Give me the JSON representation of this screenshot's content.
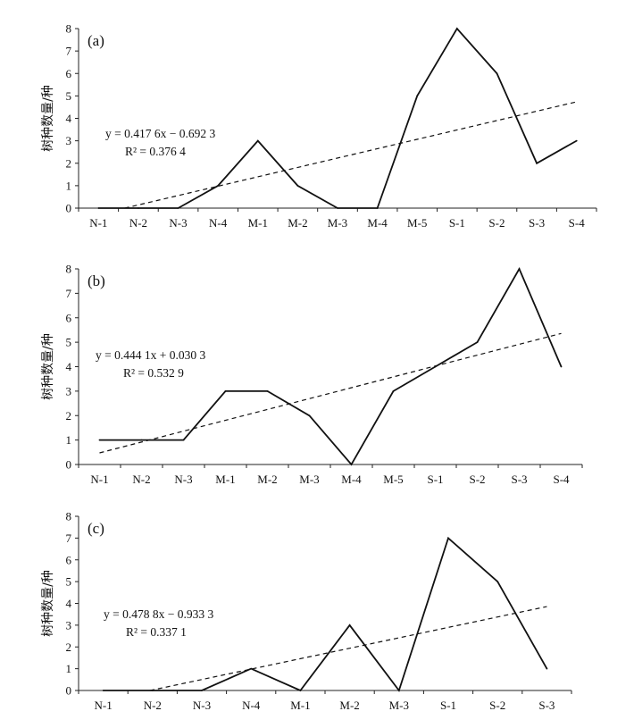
{
  "chart_data": [
    {
      "type": "line",
      "panel_label": "(a)",
      "ylabel": "树种数量/种",
      "ylim": [
        0,
        8
      ],
      "yticks": [
        0,
        1,
        2,
        3,
        4,
        5,
        6,
        7,
        8
      ],
      "categories": [
        "N-1",
        "N-2",
        "N-3",
        "N-4",
        "M-1",
        "M-2",
        "M-3",
        "M-4",
        "M-5",
        "S-1",
        "S-2",
        "S-3",
        "S-4"
      ],
      "series": [
        {
          "name": "树种数量",
          "values": [
            0,
            0,
            0,
            1,
            3,
            1,
            0,
            0,
            5,
            8,
            6,
            2,
            3
          ]
        }
      ],
      "trendline": {
        "slope": 0.4176,
        "intercept": -0.6923
      },
      "equation": "y = 0.417 6x − 0.692 3",
      "r2": "R² = 0.376 4"
    },
    {
      "type": "line",
      "panel_label": "(b)",
      "ylabel": "树种数量/种",
      "ylim": [
        0,
        8
      ],
      "yticks": [
        0,
        1,
        2,
        3,
        4,
        5,
        6,
        7,
        8
      ],
      "categories": [
        "N-1",
        "N-2",
        "N-3",
        "M-1",
        "M-2",
        "M-3",
        "M-4",
        "M-5",
        "S-1",
        "S-2",
        "S-3",
        "S-4"
      ],
      "series": [
        {
          "name": "树种数量",
          "values": [
            1,
            1,
            1,
            3,
            3,
            2,
            0,
            3,
            4,
            5,
            8,
            4
          ]
        }
      ],
      "trendline": {
        "slope": 0.4441,
        "intercept": 0.0303
      },
      "equation": "y = 0.444 1x + 0.030 3",
      "r2": "R² = 0.532 9"
    },
    {
      "type": "line",
      "panel_label": "(c)",
      "ylabel": "树种数量/种",
      "ylim": [
        0,
        8
      ],
      "yticks": [
        0,
        1,
        2,
        3,
        4,
        5,
        6,
        7,
        8
      ],
      "categories": [
        "N-1",
        "N-2",
        "N-3",
        "N-4",
        "M-1",
        "M-2",
        "M-3",
        "S-1",
        "S-2",
        "S-3"
      ],
      "series": [
        {
          "name": "树种数量",
          "values": [
            0,
            0,
            0,
            1,
            0,
            3,
            0,
            7,
            5,
            1
          ]
        }
      ],
      "trendline": {
        "slope": 0.4788,
        "intercept": -0.9333
      },
      "equation": "y = 0.478 8x − 0.933 3",
      "r2": "R² = 0.337 1"
    }
  ]
}
